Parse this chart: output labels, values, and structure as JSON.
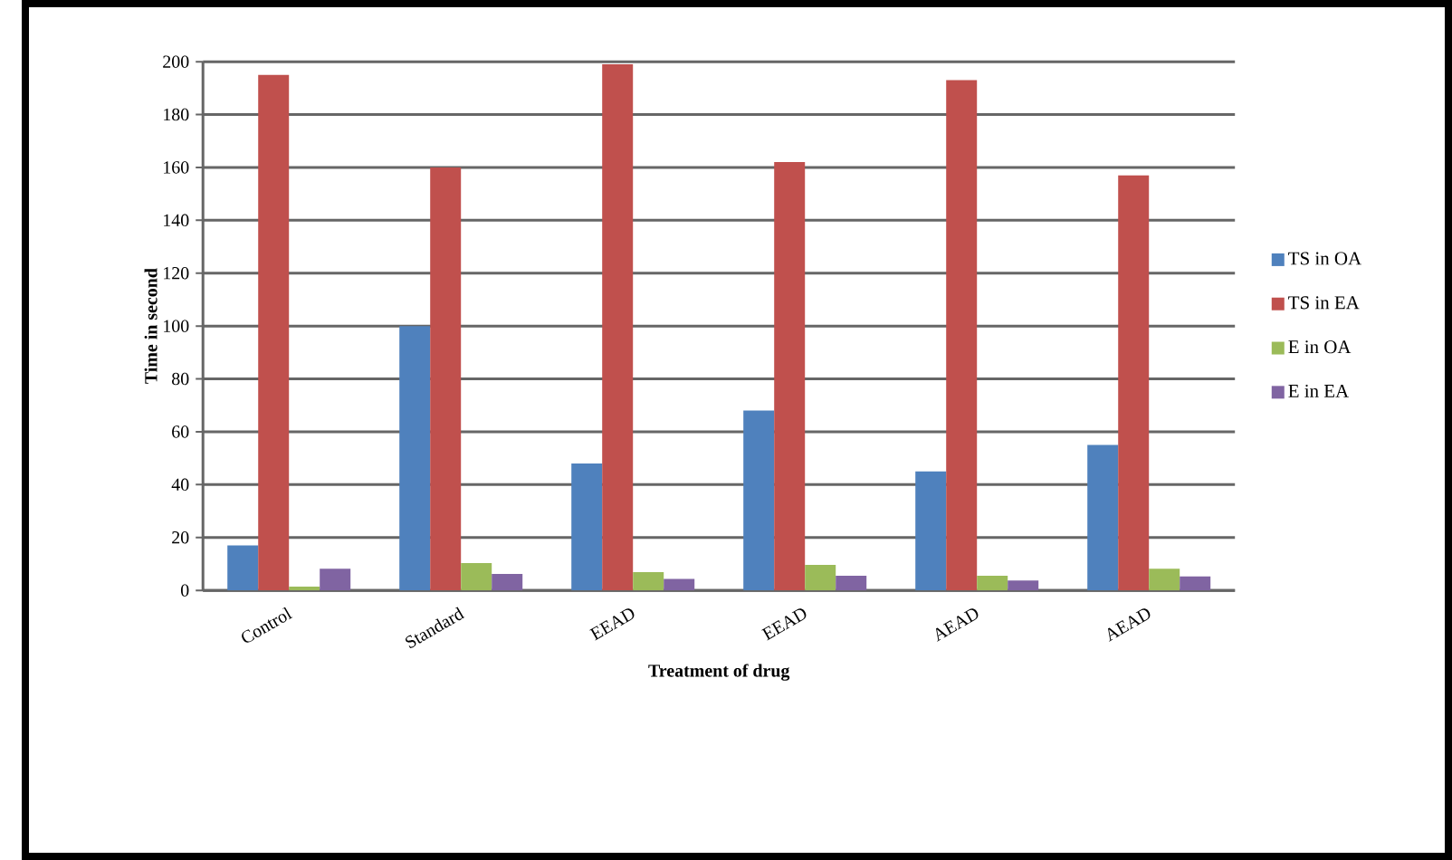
{
  "chart_data": {
    "type": "bar",
    "xlabel": "Treatment  of drug",
    "ylabel": "Time in second",
    "categories": [
      "Control",
      "Standard",
      "EEAD",
      "EEAD",
      "AEAD",
      "AEAD"
    ],
    "series": [
      {
        "name": "TS in OA",
        "color": "#4f81bd",
        "values": [
          17,
          100,
          48,
          68,
          45,
          55
        ]
      },
      {
        "name": "TS in EA",
        "color": "#c0504d",
        "values": [
          195,
          160,
          199,
          162,
          193,
          157
        ]
      },
      {
        "name": "E in OA",
        "color": "#9bbb59",
        "values": [
          1.4,
          10.3,
          6.9,
          9.6,
          5.5,
          8.2
        ]
      },
      {
        "name": "E in EA",
        "color": "#8064a2",
        "values": [
          8.2,
          6.2,
          4.3,
          5.5,
          3.7,
          5.3
        ]
      }
    ],
    "ylim": [
      0,
      200
    ],
    "yticks": [
      0,
      20,
      40,
      60,
      80,
      100,
      120,
      140,
      160,
      180,
      200
    ],
    "grid": "y",
    "legend": "right"
  }
}
